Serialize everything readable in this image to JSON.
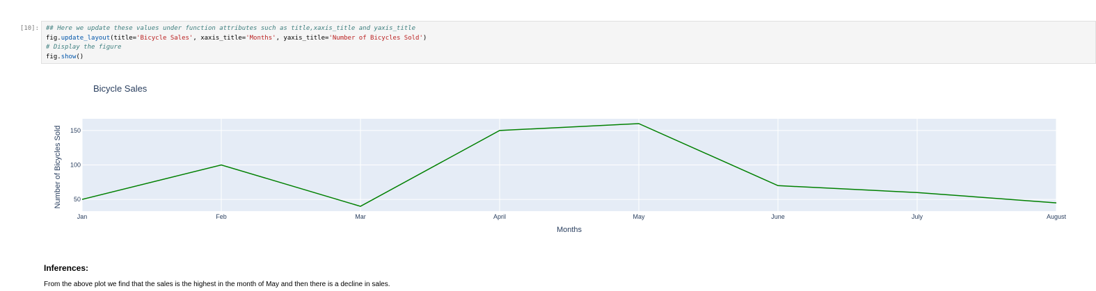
{
  "cell": {
    "prompt": "[10]:",
    "line1_comment": "## Here we update these values under function attributes such as title,xaxis_title and yaxis_title",
    "line2": {
      "obj": "fig.",
      "method": "update_layout",
      "p1": "(title=",
      "s1": "'Bicycle Sales'",
      "p2": ", xaxis_title=",
      "s2": "'Months'",
      "p3": ", yaxis_title=",
      "s3": "'Number of Bicycles Sold'",
      "p4": ")"
    },
    "line3_comment": "# Display the figure",
    "line4": {
      "obj": "fig.",
      "method": "show",
      "p": "()"
    }
  },
  "chart_data": {
    "type": "line",
    "title": "Bicycle Sales",
    "xlabel": "Months",
    "ylabel": "Number of Bicycles Sold",
    "categories": [
      "Jan",
      "Feb",
      "Mar",
      "April",
      "May",
      "June",
      "July",
      "August"
    ],
    "values": [
      50,
      100,
      40,
      150,
      160,
      70,
      60,
      45
    ],
    "yticks": [
      50,
      100,
      150
    ],
    "ylim": [
      33,
      167
    ],
    "line_color": "#008000",
    "plot_bg": "#e5ecf6",
    "grid": true
  },
  "inferences": {
    "heading": "Inferences:",
    "text": "From the above plot we find that the sales is the highest in the month of May and then there is a decline in sales."
  }
}
